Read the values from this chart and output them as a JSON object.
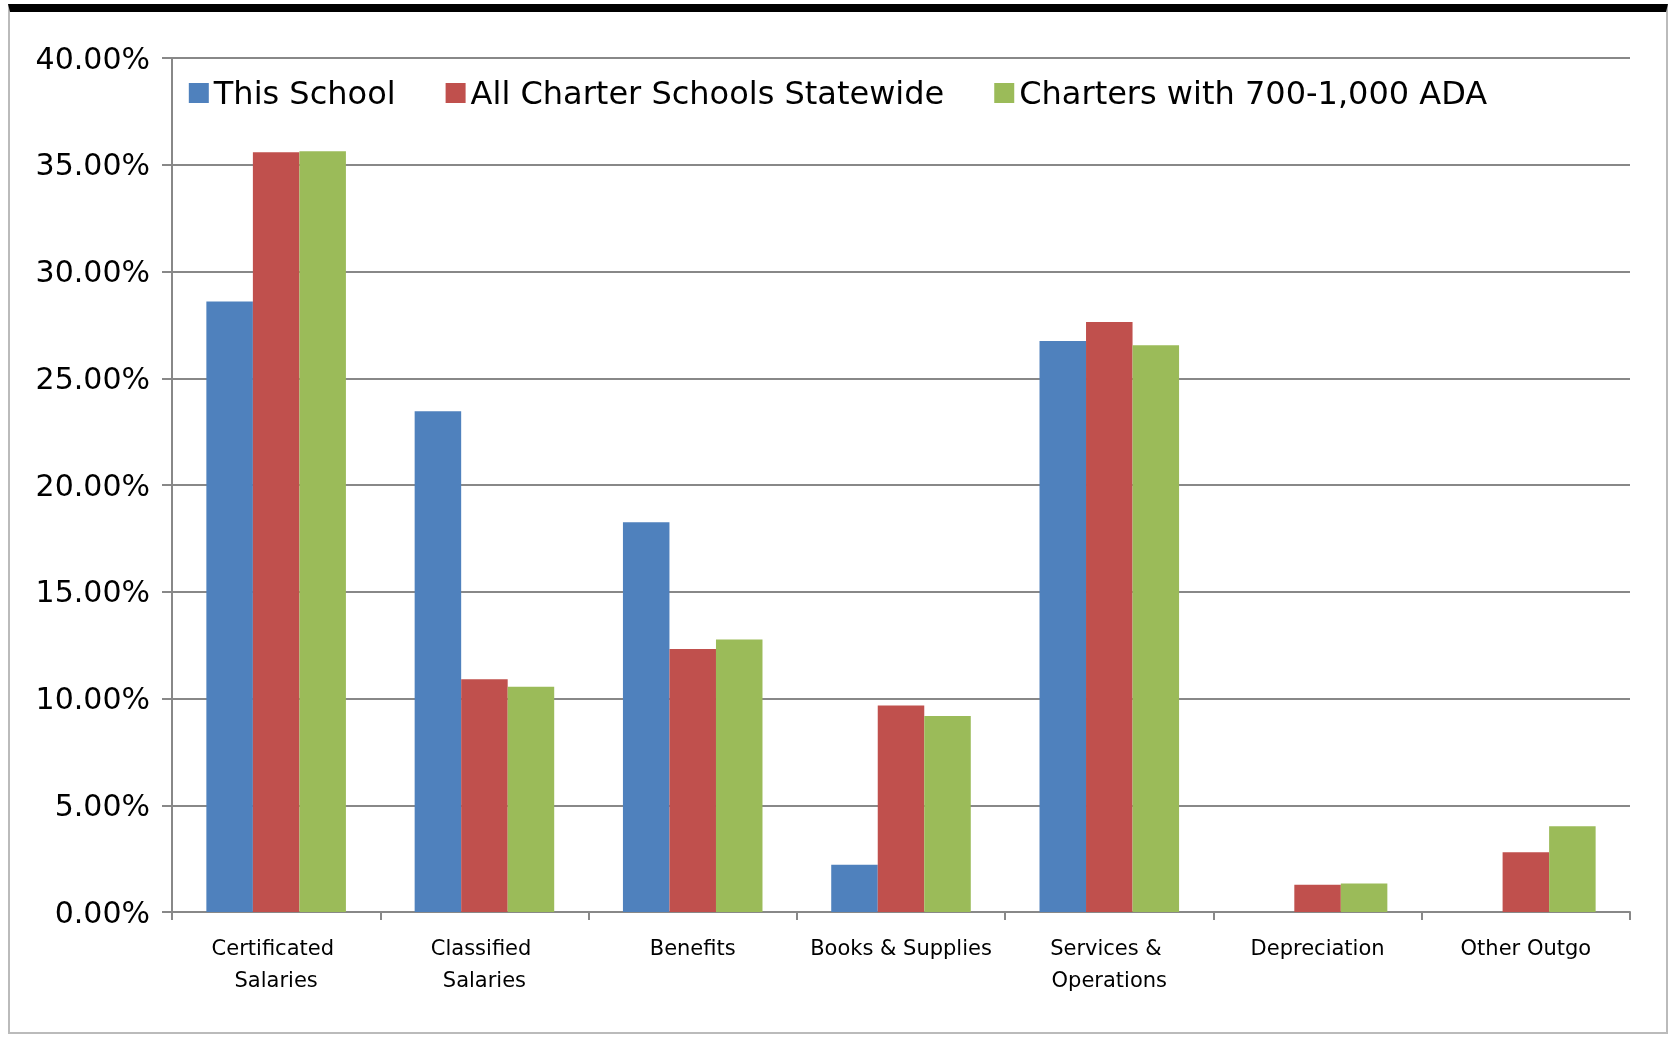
{
  "chart_data": {
    "type": "bar",
    "categories": [
      "Certificated Salaries",
      "Classified Salaries",
      "Benefits",
      "Books & Supplies",
      "Services & Operations",
      "Depreciation",
      "Other Outgo"
    ],
    "series": [
      {
        "name": "This School",
        "color": "#4f81bd",
        "values": [
          28.6,
          23.46,
          18.26,
          2.21,
          26.75,
          0,
          0
        ]
      },
      {
        "name": "All Charter Schools Statewide",
        "color": "#c0504d",
        "values": [
          35.58,
          10.9,
          12.32,
          9.67,
          27.63,
          1.28,
          2.8
        ]
      },
      {
        "name": "Charters with 700-1,000 ADA",
        "color": "#9bbb59",
        "values": [
          35.63,
          10.55,
          12.76,
          9.18,
          26.55,
          1.33,
          4.02
        ]
      }
    ],
    "ylim": [
      0,
      40
    ],
    "yticks": [
      {
        "value": 0,
        "label": "0.00%"
      },
      {
        "value": 5,
        "label": "5.00%"
      },
      {
        "value": 10,
        "label": "10.00%"
      },
      {
        "value": 15,
        "label": "15.00%"
      },
      {
        "value": 20,
        "label": "20.00%"
      },
      {
        "value": 25,
        "label": "25.00%"
      },
      {
        "value": 30,
        "label": "30.00%"
      },
      {
        "value": 35,
        "label": "35.00%"
      },
      {
        "value": 40,
        "label": "40.00%"
      }
    ],
    "grid": "y",
    "legend": "top"
  }
}
